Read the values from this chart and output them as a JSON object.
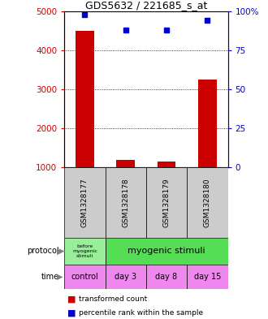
{
  "title": "GDS5632 / 221685_s_at",
  "samples": [
    "GSM1328177",
    "GSM1328178",
    "GSM1328179",
    "GSM1328180"
  ],
  "red_values": [
    4500,
    1200,
    1150,
    3250
  ],
  "blue_percentiles": [
    98,
    88,
    88,
    94
  ],
  "ylim_left": [
    1000,
    5000
  ],
  "ylim_right": [
    0,
    100
  ],
  "yticks_left": [
    1000,
    2000,
    3000,
    4000,
    5000
  ],
  "yticks_right": [
    0,
    25,
    50,
    75,
    100
  ],
  "ytick_labels_right": [
    "0",
    "25",
    "50",
    "75",
    "100%"
  ],
  "protocol_label0": "before\nmyogenic\nstimuli",
  "protocol_label1": "myogenic stimuli",
  "protocol_color0": "#99ee99",
  "protocol_color1": "#55dd55",
  "time_labels": [
    "control",
    "day 3",
    "day 8",
    "day 15"
  ],
  "time_color": "#ee88ee",
  "sample_bg_color": "#cccccc",
  "red_color": "#cc0000",
  "blue_color": "#0000cc",
  "baseline": 1000,
  "bar_width": 0.45
}
